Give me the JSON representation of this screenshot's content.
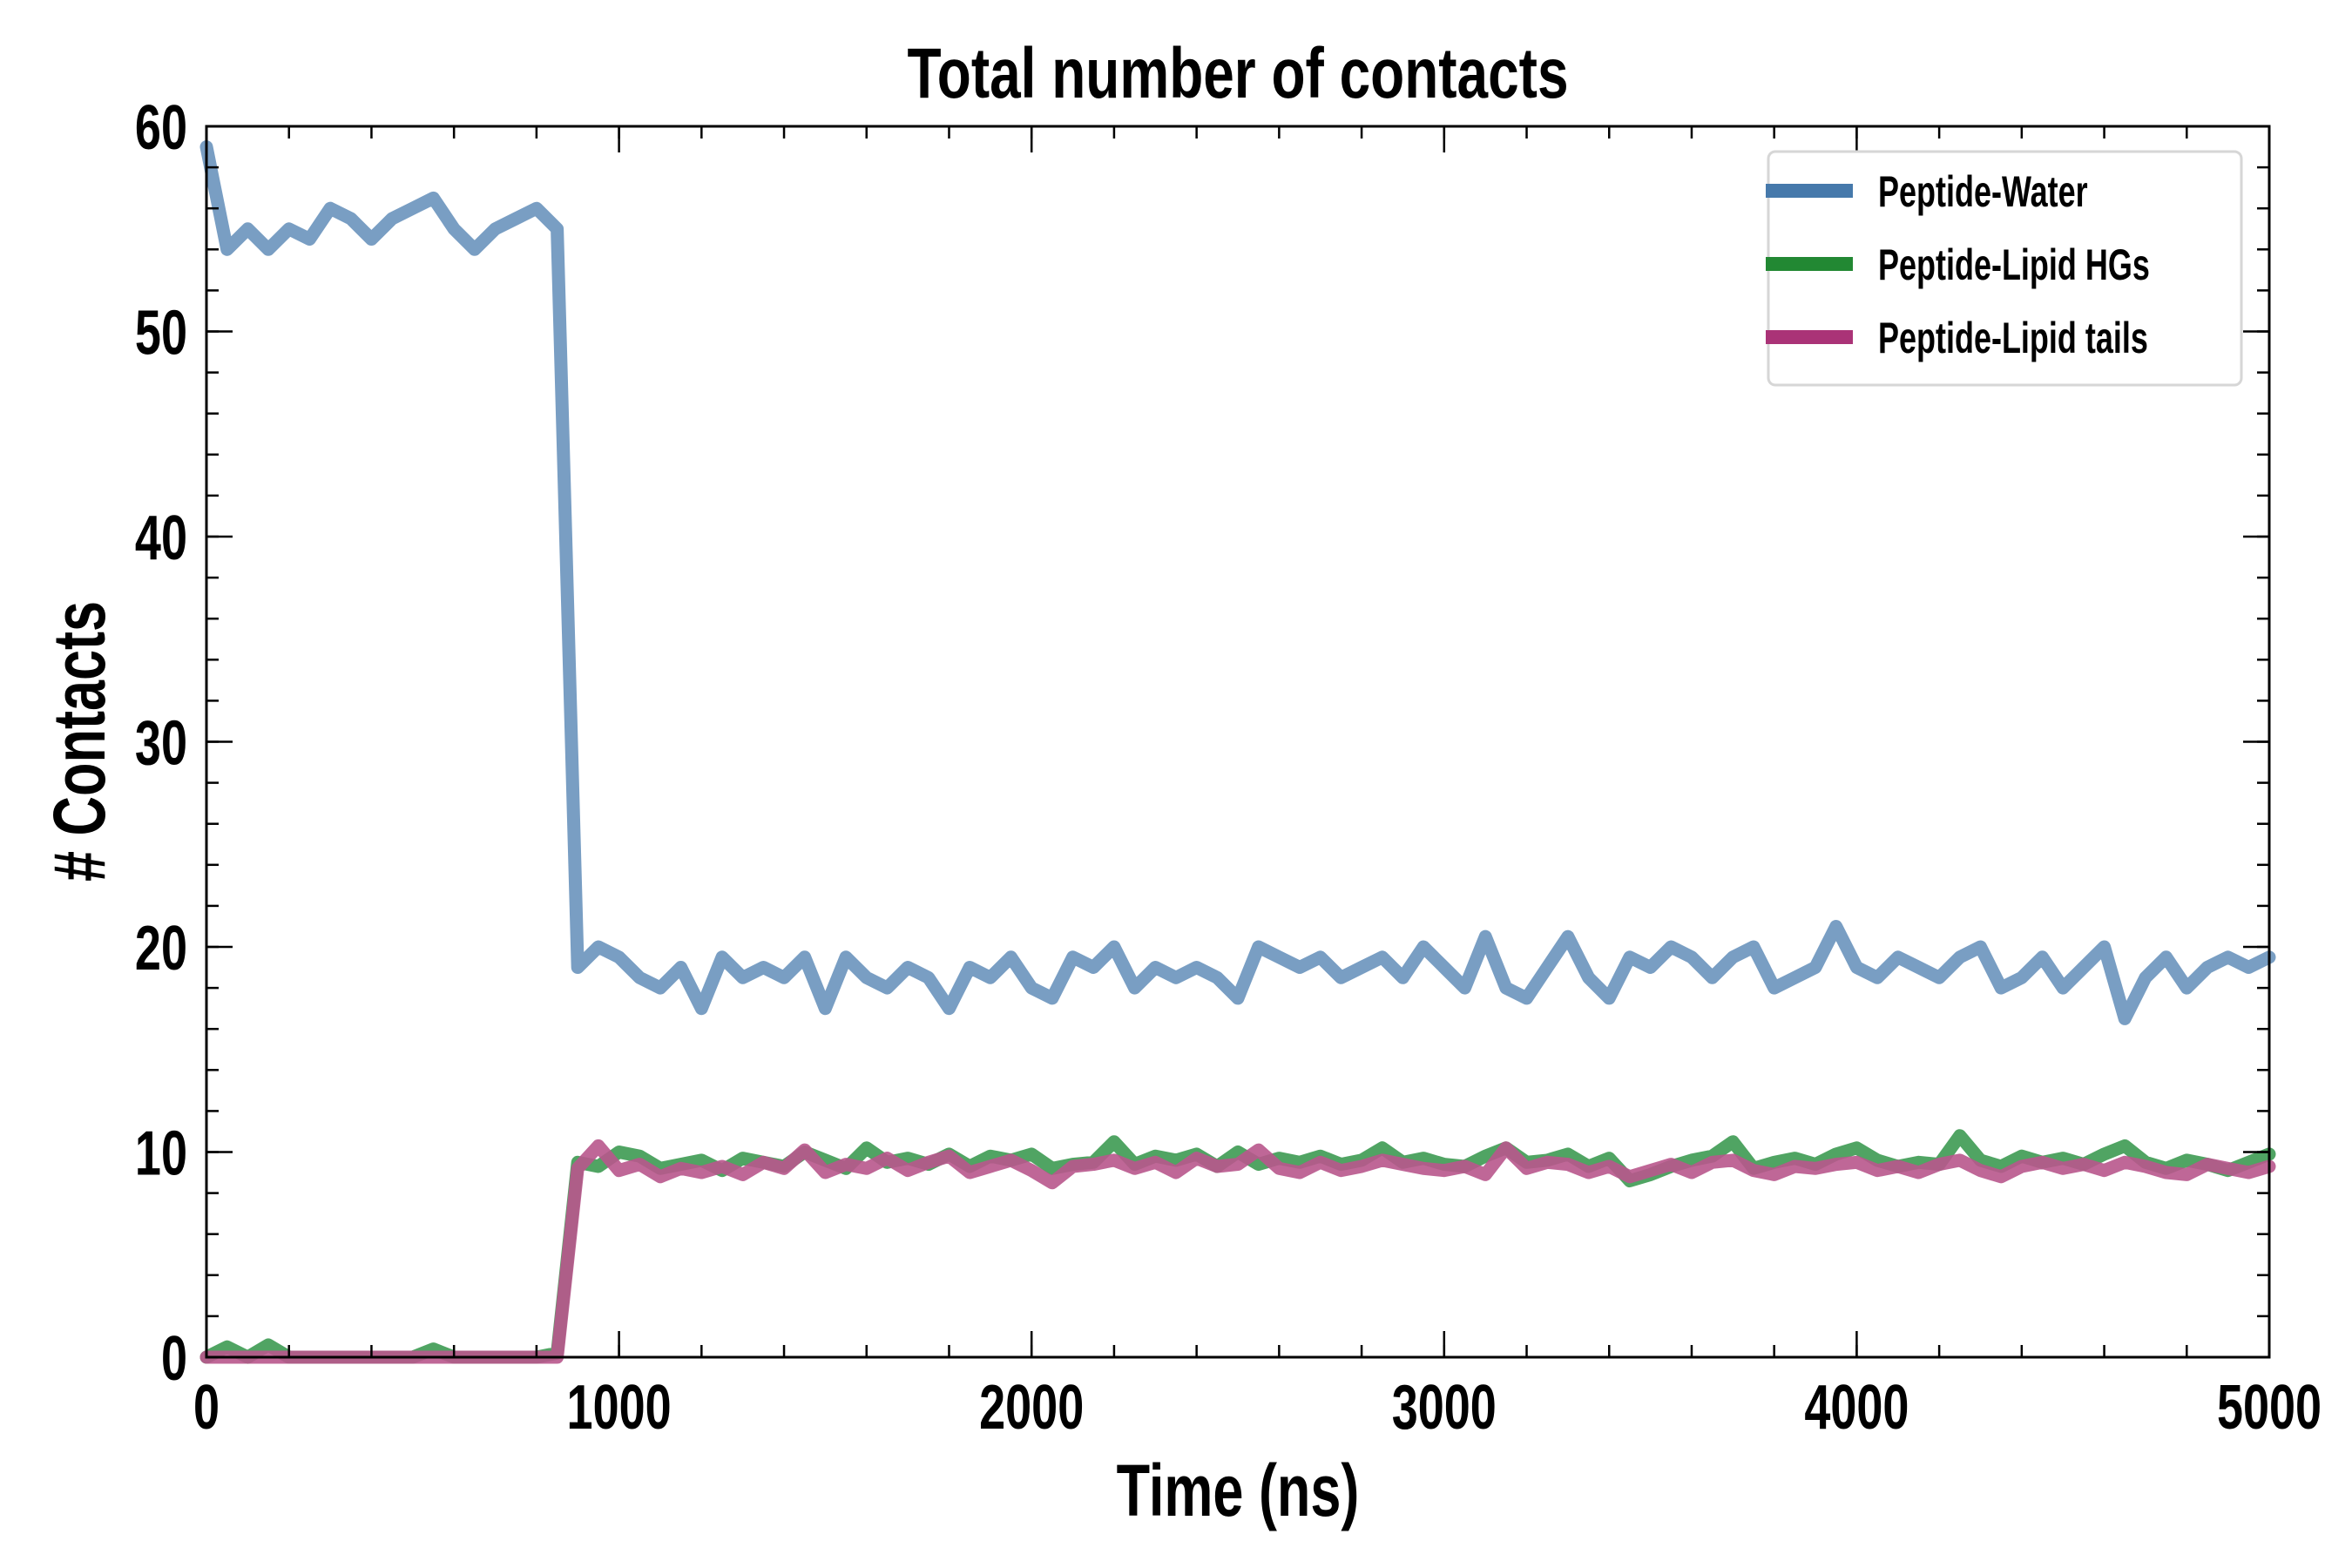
{
  "chart_data": {
    "type": "line",
    "title": "Total number of contacts",
    "xlabel": "Time (ns)",
    "ylabel": "# Contacts",
    "xlim": [
      0,
      5000
    ],
    "ylim": [
      0,
      60
    ],
    "xticks": [
      "0",
      "1000",
      "2000",
      "3000",
      "4000",
      "5000"
    ],
    "yticks": [
      "0",
      "10",
      "20",
      "30",
      "40",
      "50",
      "60"
    ],
    "x_minor_step": 200,
    "y_minor_step": 2,
    "grid": false,
    "legend_position": "top-right",
    "x_step": 50,
    "series": [
      {
        "name": "Peptide-Water",
        "color": "#4679ab",
        "line_color": "#6a93bd",
        "values": [
          59,
          54,
          55,
          54,
          55,
          54.5,
          56,
          55.5,
          54.5,
          55.5,
          56,
          56.5,
          55,
          54,
          55,
          55.5,
          56,
          55,
          19,
          20,
          19.5,
          18.5,
          18,
          19,
          17,
          19.5,
          18.5,
          19,
          18.5,
          19.5,
          17,
          19.5,
          18.5,
          18,
          19,
          18.5,
          17,
          19,
          18.5,
          19.5,
          18,
          17.5,
          19.5,
          19,
          20,
          18,
          19,
          18.5,
          19,
          18.5,
          17.5,
          20,
          19.5,
          19,
          19.5,
          18.5,
          19,
          19.5,
          18.5,
          20,
          19,
          18,
          20.5,
          18,
          17.5,
          19,
          20.5,
          18.5,
          17.5,
          19.5,
          19,
          20,
          19.5,
          18.5,
          19.5,
          20,
          18,
          18.5,
          19,
          21,
          19,
          18.5,
          19.5,
          19,
          18.5,
          19.5,
          20,
          18,
          18.5,
          19.5,
          18,
          19,
          20,
          16.5,
          18.5,
          19.5,
          18,
          19,
          19.5,
          19,
          19.5
        ]
      },
      {
        "name": "Peptide-Lipid HGs",
        "color": "#228833",
        "line_color": "#3d9a52",
        "values": [
          0,
          0.5,
          0,
          0.6,
          0,
          0,
          0,
          0,
          0,
          0,
          0,
          0.4,
          0,
          0,
          0,
          0,
          0,
          0.2,
          9.5,
          9.3,
          10,
          9.8,
          9.2,
          9.4,
          9.6,
          9.1,
          9.7,
          9.5,
          9.3,
          10,
          9.6,
          9.2,
          10.2,
          9.5,
          9.7,
          9.4,
          9.9,
          9.3,
          9.8,
          9.6,
          9.9,
          9.2,
          9.4,
          9.5,
          10.5,
          9.4,
          9.8,
          9.6,
          9.9,
          9.3,
          10,
          9.4,
          9.7,
          9.5,
          9.8,
          9.4,
          9.6,
          10.2,
          9.5,
          9.7,
          9.4,
          9.3,
          9.8,
          10.2,
          9.5,
          9.6,
          9.9,
          9.3,
          9.7,
          8.6,
          8.9,
          9.3,
          9.6,
          9.8,
          10.5,
          9.2,
          9.5,
          9.7,
          9.4,
          9.9,
          10.2,
          9.6,
          9.3,
          9.5,
          9.4,
          10.8,
          9.6,
          9.3,
          9.8,
          9.5,
          9.7,
          9.4,
          9.9,
          10.3,
          9.5,
          9.2,
          9.6,
          9.4,
          9.1,
          9.5,
          9.9
        ]
      },
      {
        "name": "Peptide-Lipid tails",
        "color": "#aa3377",
        "line_color": "#b8568c",
        "values": [
          0,
          0,
          0,
          0,
          0,
          0,
          0,
          0,
          0,
          0,
          0,
          0,
          0,
          0,
          0,
          0,
          0,
          0,
          9.2,
          10.3,
          9.1,
          9.4,
          8.8,
          9.2,
          9,
          9.3,
          8.9,
          9.5,
          9.2,
          10.1,
          9,
          9.4,
          9.2,
          9.7,
          9.1,
          9.5,
          9.8,
          9,
          9.3,
          9.6,
          9.1,
          8.5,
          9.3,
          9.4,
          9.6,
          9.2,
          9.5,
          9,
          9.7,
          9.3,
          9.4,
          10.1,
          9.2,
          9,
          9.5,
          9.1,
          9.3,
          9.6,
          9.4,
          9.2,
          9.1,
          9.3,
          8.9,
          10.2,
          9.2,
          9.5,
          9.4,
          9,
          9.3,
          8.8,
          9.1,
          9.4,
          9,
          9.5,
          9.6,
          9.1,
          8.9,
          9.3,
          9.2,
          9.4,
          9.5,
          9.1,
          9.3,
          9,
          9.4,
          9.6,
          9.1,
          8.8,
          9.3,
          9.5,
          9.2,
          9.4,
          9.1,
          9.5,
          9.3,
          9,
          8.9,
          9.4,
          9.2,
          9,
          9.3
        ]
      }
    ]
  }
}
